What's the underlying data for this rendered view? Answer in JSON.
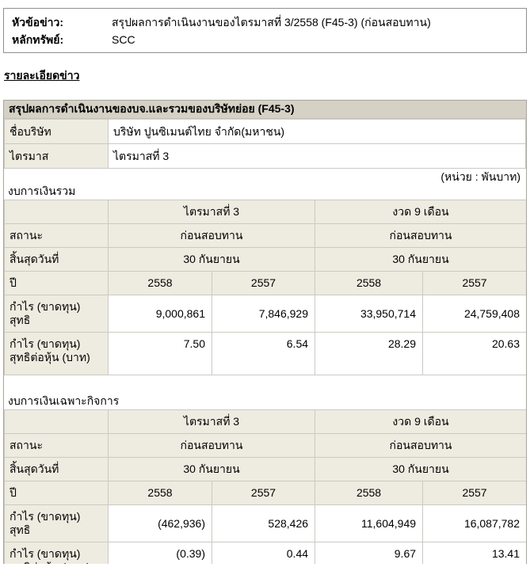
{
  "page": {
    "news_header_label": "หัวข้อข่าว:",
    "news_header_value": "สรุปผลการดำเนินงานของไตรมาสที่ 3/2558 (F45-3) (ก่อนสอบทาน)",
    "security_label": "หลักทรัพย์:",
    "security_value": "SCC",
    "details_heading": "รายละเอียดข่าว"
  },
  "report": {
    "title": "สรุปผลการดำเนินงานของบจ.และรวมของบริษัทย่อย (F45-3)",
    "company_label": "ชื่อบริษัท",
    "company_value": "บริษัท ปูนซิเมนต์ไทย จำกัด(มหาชน)",
    "quarter_label": "ไตรมาส",
    "quarter_value": "ไตรมาสที่ 3",
    "unit_note": "(หน่วย : พันบาท)"
  },
  "labels": {
    "quarter_group": "ไตรมาสที่ 3",
    "nine_month_group": "งวด 9 เดือน",
    "status": "สถานะ",
    "end_date": "สิ้นสุดวันที่",
    "year": "ปี",
    "net_profit": "กำไร (ขาดทุน) สุทธิ",
    "eps_line1": "กำไร (ขาดทุน)",
    "eps_line2": "สุทธิต่อหุ้น (บาท)"
  },
  "consolidated": {
    "section_label": "งบการเงินรวม",
    "status": [
      "ก่อนสอบทาน",
      "ก่อนสอบทาน"
    ],
    "end_date": [
      "30 กันยายน",
      "30 กันยายน"
    ],
    "years": [
      "2558",
      "2557",
      "2558",
      "2557"
    ],
    "net_profit": [
      "9,000,861",
      "7,846,929",
      "33,950,714",
      "24,759,408"
    ],
    "eps": [
      "7.50",
      "6.54",
      "28.29",
      "20.63"
    ]
  },
  "separate": {
    "section_label": "งบการเงินเฉพาะกิจการ",
    "status": [
      "ก่อนสอบทาน",
      "ก่อนสอบทาน"
    ],
    "end_date": [
      "30 กันยายน",
      "30 กันยายน"
    ],
    "years": [
      "2558",
      "2557",
      "2558",
      "2557"
    ],
    "net_profit": [
      "(462,936)",
      "528,426",
      "11,604,949",
      "16,087,782"
    ],
    "eps": [
      "(0.39)",
      "0.44",
      "9.67",
      "13.41"
    ]
  },
  "colors": {
    "title_bar_bg": "#d5d1c5",
    "label_cell_bg": "#eeebe0",
    "inner_border": "#ccc9c2",
    "outer_border": "#a8a59d",
    "box_border": "#8f8f8f"
  }
}
